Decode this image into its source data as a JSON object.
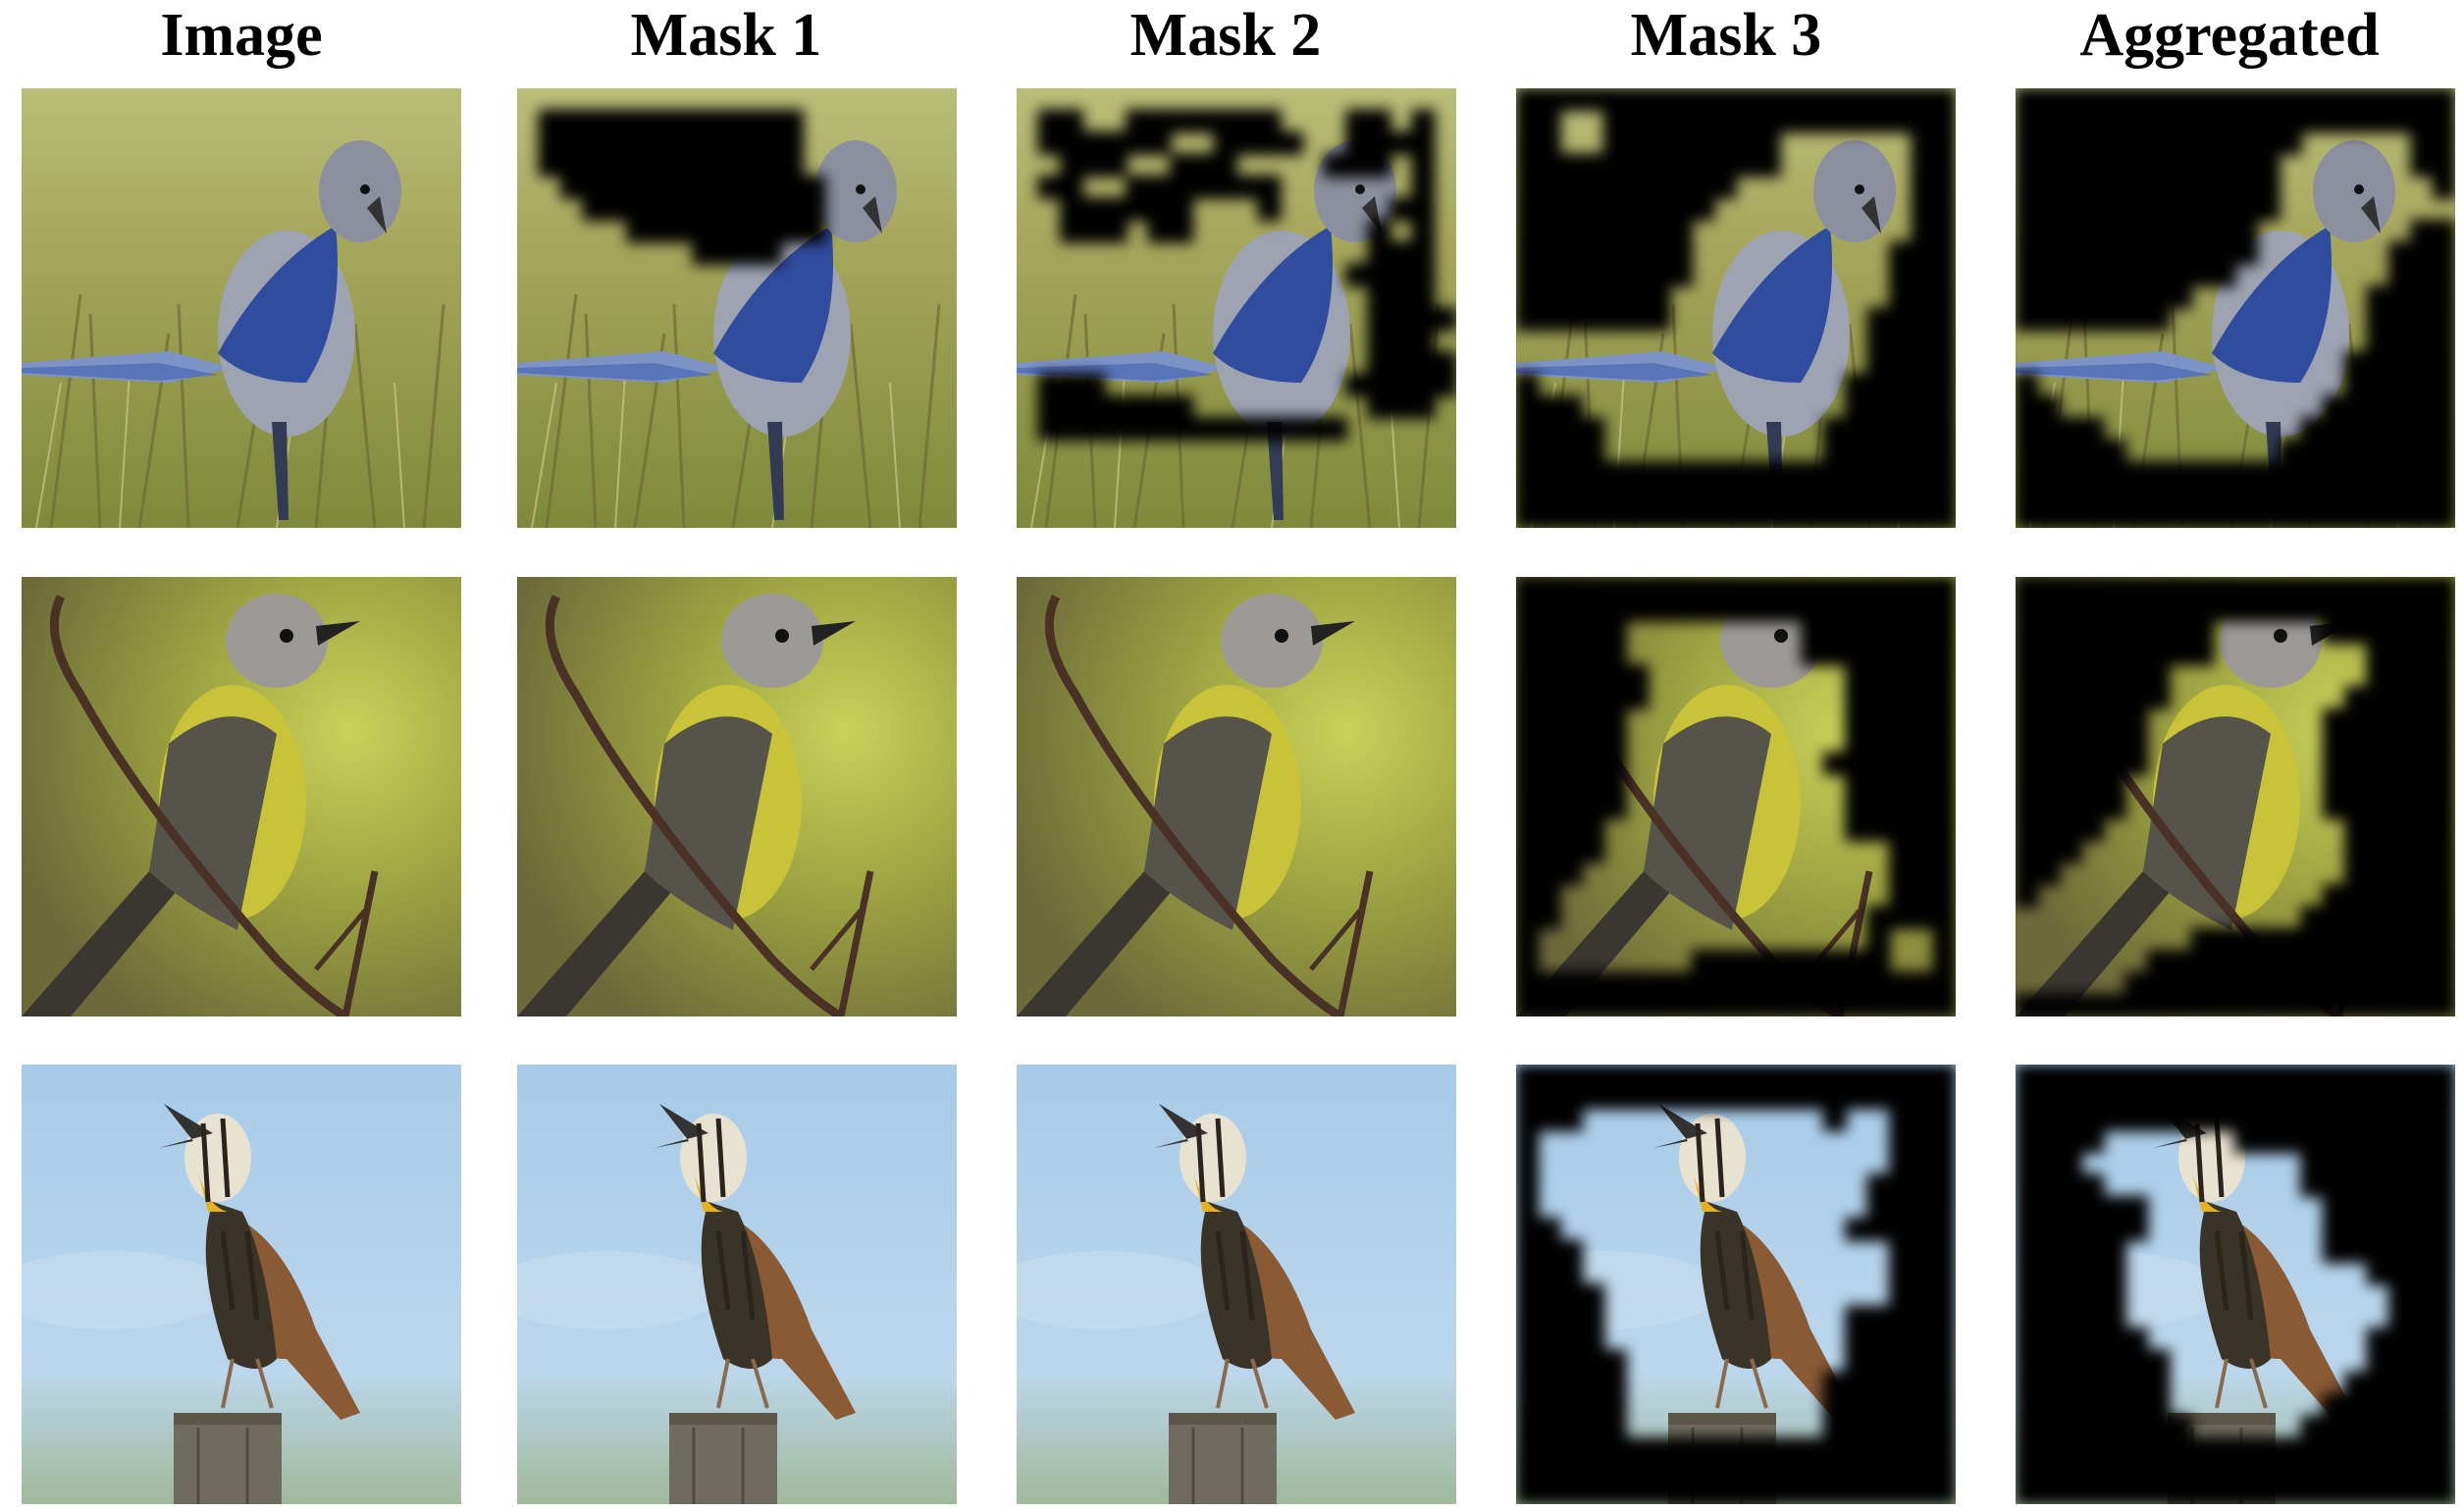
{
  "headers": [
    "Image",
    "Mask 1",
    "Mask 2",
    "Mask 3",
    "Aggregated"
  ],
  "rows": [
    {
      "bird": "blue jay",
      "background": "grass",
      "masks": [
        [
          "11111111111111111111",
          "10000000000001111111",
          "10000000000001111111",
          "10000000000001111111",
          "11000000000000111111",
          "11100000000000111111",
          "11111000000000111111",
          "11111111000011111111",
          "11111111111111111111",
          "11111111111111111111",
          "11111111111111111111",
          "11111111111111111111",
          "11111111111111111111",
          "11111111111111111111",
          "11111111111111111111",
          "11111111111111111111",
          "11111111111111111111",
          "11111111111111111111",
          "11111111111111111111",
          "11111111111111111111"
        ],
        [
          "11111111111111111111",
          "10011000000011100101",
          "10000001100001100001",
          "11000110001111000101",
          "10011000000011111101",
          "11000000111011111001",
          "11000100111111110101",
          "11111111111111110001",
          "11111111111111100001",
          "11111111111111110001",
          "11111111111111110000",
          "11111111111111110001",
          "11111111111111110000",
          "10001111111111100000",
          "10000000111111110001",
          "10000000000000011111",
          "11111111111111111111",
          "11111111111111111111",
          "11111111111111111111",
          "11111111111111111111"
        ],
        [
          "00000000000000000000",
          "00110000000000000000",
          "00110000000011111100",
          "00000000000011111100",
          "00000000001111111100",
          "00000000011111111100",
          "00000000111111111100",
          "00000000111111111000",
          "00000000111111111000",
          "00000001111111111000",
          "00000001111111110000",
          "11111111111111110000",
          "11111111111111110000",
          "01111111111111100000",
          "00011111111111100000",
          "00001111111111000000",
          "00001111111111000000",
          "00000000000000000000",
          "00000000000000000000",
          "00000000000000000000"
        ],
        [
          "00000000000000000000",
          "00000000000000000000",
          "00000000000001111100",
          "00000000000011111100",
          "00000000000011111110",
          "00000000000011111111",
          "00000000000111111100",
          "00000000000111111000",
          "00000000001111111000",
          "00000000111111110000",
          "00000001111111110000",
          "11111111111111110000",
          "11111111111111100000",
          "01111111111111100000",
          "00111111111111000000",
          "00001111111110000000",
          "00000111111100000000",
          "00000000000000000000",
          "00000000000000000000",
          "00000000000000000000"
        ]
      ]
    },
    {
      "bird": "kingbird",
      "background": "green blur",
      "masks": [
        [
          "11111111111111111111",
          "11111111111111111111",
          "11111111111111111111",
          "11111111111111111111",
          "11111111111111111111",
          "11111111111111111111",
          "11111111111111111111",
          "11111111111111111111",
          "11111111111111111111",
          "11111111111111111111",
          "11111111111111111111",
          "11111111111111111111",
          "11111111111111111111",
          "11111111111111111111",
          "11111111111111111111",
          "11111111111111111111",
          "11111111111111111111",
          "11111111111111111111",
          "11111111111111111111",
          "11111111111111111111"
        ],
        [
          "11111111111111111111",
          "11111111111111111111",
          "11111111111111111111",
          "11111111111111111111",
          "11111111111111111111",
          "11111111111111111111",
          "11111111111111111111",
          "11111111111111111111",
          "11111111111111111111",
          "11111111111111111111",
          "11111111111111111111",
          "11111111111111111111",
          "11111111111111111111",
          "11111111111111111111",
          "11111111111111111111",
          "11111111111111111111",
          "11111111111111111111",
          "11111111111111111111",
          "11111111111111111111",
          "11111111111111111111"
        ],
        [
          "00000000000000000000",
          "00000000000000000000",
          "00000111111110000000",
          "00000111111110000000",
          "00000011111111100000",
          "00000011111111100000",
          "00000111111111100000",
          "00000111111111100000",
          "00000111111111000000",
          "00000111111111100000",
          "00000111111111100000",
          "00001111111111100000",
          "00001111111111111000",
          "00011111111111111000",
          "00111111111111111000",
          "00111111111111110000",
          "01111111111111110110",
          "01111111000000000110",
          "00000000000000000000",
          "00000000000000000000"
        ],
        [
          "00000000000000000000",
          "00000000000000000000",
          "00000000011111000000",
          "00000000011111110000",
          "00000001111111110000",
          "00000001111111100000",
          "00000011111111000000",
          "00000011111111000000",
          "00000011111111000000",
          "00000111111111000000",
          "00000111111111000000",
          "00001111111111100000",
          "00011111111111100000",
          "00111111111111100000",
          "01111111111111000000",
          "11111111111110000000",
          "11111111000000000000",
          "11111100000000000000",
          "11111000000000000000",
          "00000000000000000000"
        ]
      ]
    },
    {
      "bird": "meadowlark",
      "background": "sky",
      "masks": [
        [
          "11111111111111111111",
          "11111111111111111111",
          "11111111111111111111",
          "11111111111111111111",
          "11111111111111111111",
          "11111111111111111111",
          "11111111111111111111",
          "11111111111111111111",
          "11111111111111111111",
          "11111111111111111111",
          "11111111111111111111",
          "11111111111111111111",
          "11111111111111111111",
          "11111111111111111111",
          "11111111111111111111",
          "11111111111111111111",
          "11111111111111111111",
          "11111111111111111111",
          "11111111111111111111",
          "11111111111111111111"
        ],
        [
          "11111111111111111111",
          "11111111111111111111",
          "11111111111111111111",
          "11111111111111111111",
          "11111111111111111111",
          "11111111111111111111",
          "11111111111111111111",
          "11111111111111111111",
          "11111111111111111111",
          "11111111111111111111",
          "11111111111111111111",
          "11111111111111111111",
          "11111111111111111111",
          "11111111111111111111",
          "11111111111111111111",
          "11111111111111111111",
          "11111111111111111111",
          "11111111111111111111",
          "11111111111111111111",
          "11111111111111111111"
        ],
        [
          "00000000000000000000",
          "00000000000000000000",
          "00011111111111011000",
          "01111111111111111000",
          "01111111111111111000",
          "01111111111111110000",
          "01111111111111110000",
          "00111111111111100000",
          "00011111111111111000",
          "00011111111111111000",
          "00001111111111111000",
          "00001111111111100000",
          "00001111111111100000",
          "00000111111111100000",
          "00000111111111000000",
          "00000111111111000000",
          "00000111111111000000",
          "00000000000000000000",
          "00000000000000000000",
          "00000000000000000000"
        ],
        [
          "00000000000000000000",
          "00000000000000000000",
          "00000000000000000000",
          "00001111110000000000",
          "00011111111110000000",
          "00001111111110000000",
          "00000011111111000000",
          "00000011111111000000",
          "00000111111111000000",
          "00000111111111110000",
          "00000111111111111000",
          "00000111111111111000",
          "00000011111111110000",
          "00000001111111110000",
          "00000001111111100000",
          "00000001111111000000",
          "00000000111110000000",
          "00000000000000000000",
          "00000000000000000000",
          "00000000000000000000"
        ]
      ]
    }
  ]
}
